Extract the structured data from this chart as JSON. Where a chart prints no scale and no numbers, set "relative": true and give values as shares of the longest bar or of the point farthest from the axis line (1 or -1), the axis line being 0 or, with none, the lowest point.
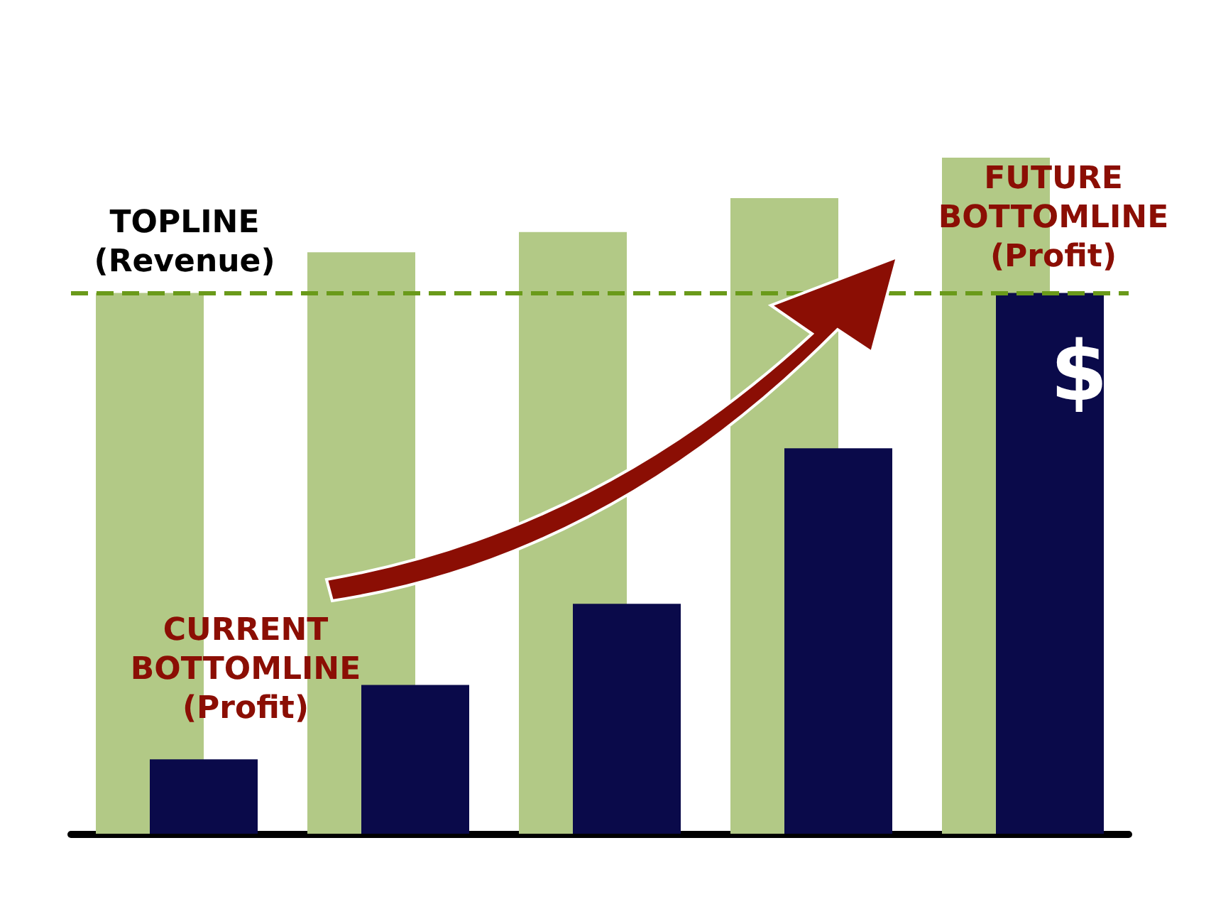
{
  "chart_data": {
    "type": "bar",
    "relative": true,
    "categories": [
      null,
      null,
      null,
      null,
      null
    ],
    "series": [
      {
        "color": "#b2c986",
        "values": [
          0.8,
          0.86,
          0.89,
          0.94,
          1
        ]
      },
      {
        "color": "#0a0a4a",
        "values": [
          0.11,
          0.22,
          0.34,
          0.57,
          0.8
        ]
      }
    ],
    "ref_lines": [
      {
        "axis": "y",
        "value": 0.8,
        "color": "#6a9a1a",
        "line_style": "dashed"
      }
    ],
    "annotations": [
      "TOPLINE\n(Revenue)",
      "CURRENT\nBOTTOMLINE\n(Profit)",
      "FUTURE\nBOTTOMLINE\n(Profit)",
      "$"
    ],
    "data_labels": false
  }
}
